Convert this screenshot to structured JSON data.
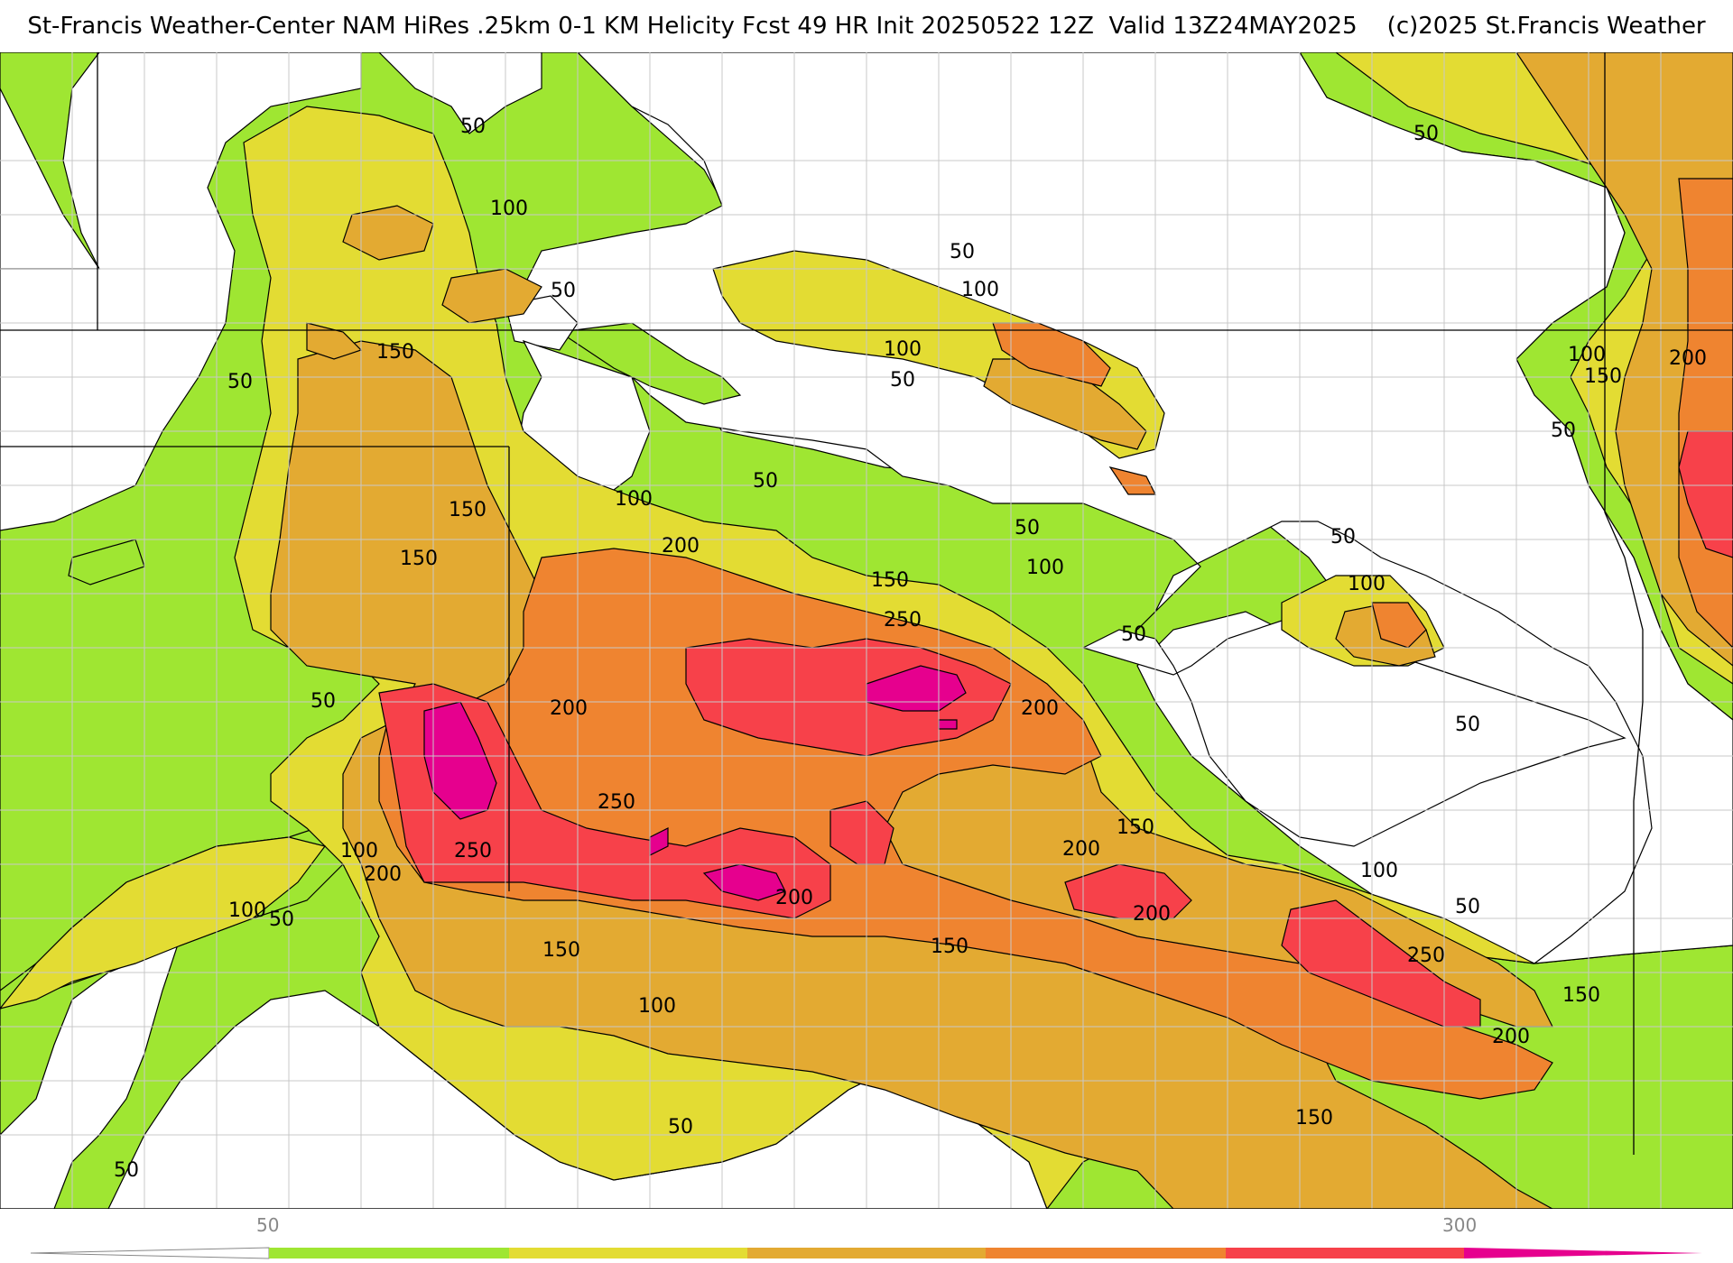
{
  "title": "St-Francis Weather-Center NAM HiRes .25km 0-1 KM Helicity Fcst 49 HR Init 20250522 12Z  Valid 13Z24MAY2025    (c)2025 St.Francis Weather",
  "colors": {
    "none": "#ffffff",
    "c50": "#9fe632",
    "c100": "#e3dc33",
    "c150": "#e3aa32",
    "c200": "#ef8430",
    "c250": "#f7414a",
    "c300": "#e6008e",
    "boundary": "#000000",
    "county": "#c8c8c8"
  },
  "contour_labels": [
    "50",
    "100",
    "150",
    "200",
    "250"
  ],
  "colorbar": {
    "tick_labels": [
      "50",
      "300"
    ],
    "levels": [
      50,
      100,
      150,
      200,
      250,
      300
    ]
  }
}
